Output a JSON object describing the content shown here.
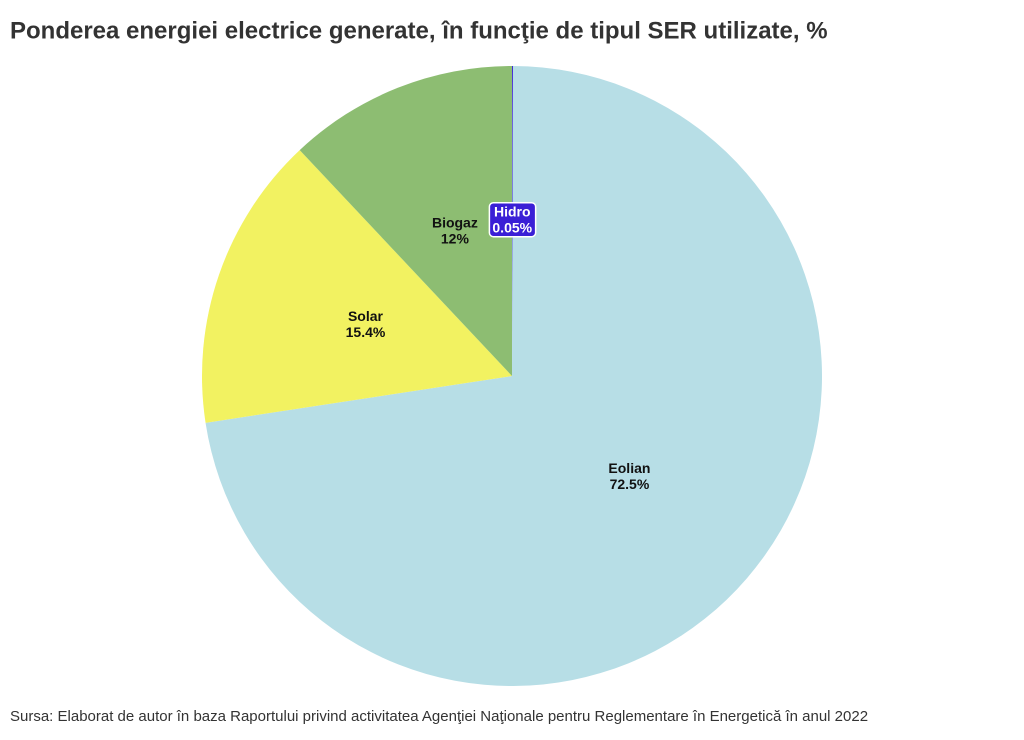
{
  "chart_data": {
    "type": "pie",
    "title": "Ponderea energiei electrice generate, în funcţie de tipul SER utilizate, %",
    "categories": [
      "Hidro",
      "Eolian",
      "Solar",
      "Biogaz"
    ],
    "values": [
      0.05,
      72.5,
      15.4,
      12
    ],
    "value_labels": [
      "0.05%",
      "72.5%",
      "15.4%",
      "12%"
    ],
    "colors": [
      "#3a1fd6",
      "#b7dee6",
      "#f2f261",
      "#8dbd72"
    ],
    "source": "Sursa: Elaborat de autor în baza Raportului privind activitatea Agenţiei Naţionale pentru Reglementare în Energetică în anul 2022"
  }
}
